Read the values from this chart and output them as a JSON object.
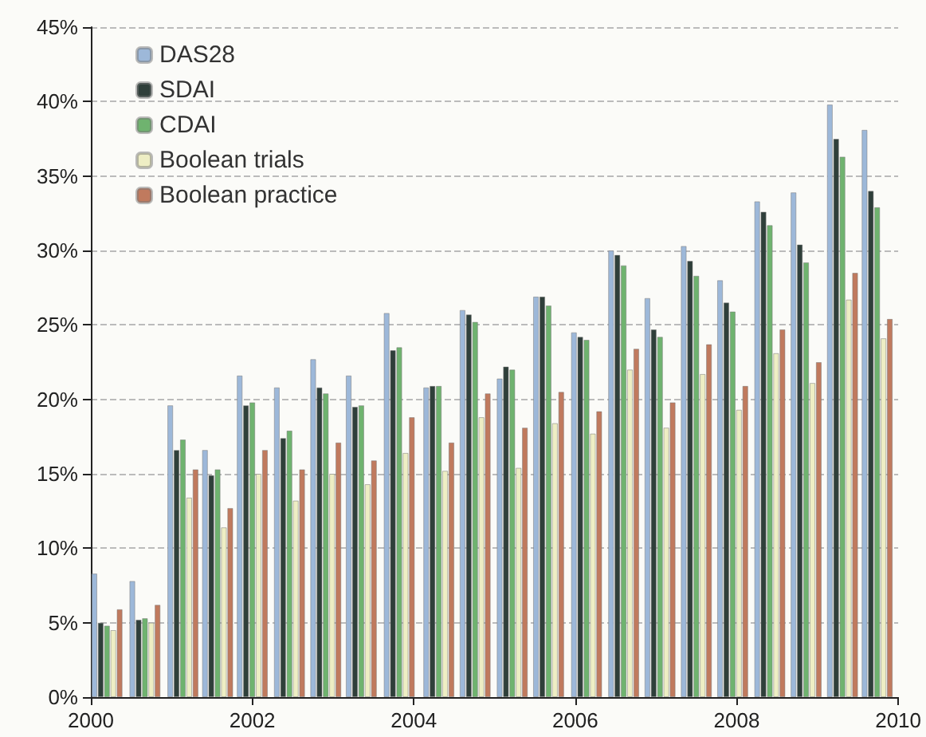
{
  "chart_data": {
    "type": "bar",
    "x": [
      2000.2,
      2000.67,
      2001.14,
      2001.57,
      2002.0,
      2002.46,
      2002.91,
      2003.35,
      2003.82,
      2004.31,
      2004.76,
      2005.22,
      2005.67,
      2006.14,
      2006.6,
      2007.05,
      2007.5,
      2007.95,
      2008.41,
      2008.86,
      2009.31,
      2009.74
    ],
    "series": [
      {
        "name": "DAS28",
        "color": "#9db8d9",
        "values": [
          8.3,
          7.8,
          19.6,
          16.6,
          21.6,
          20.8,
          22.7,
          21.6,
          25.8,
          20.8,
          26.0,
          21.4,
          26.9,
          24.5,
          30.0,
          26.8,
          30.3,
          28.0,
          33.3,
          33.9,
          39.8,
          38.1
        ]
      },
      {
        "name": "SDAI",
        "color": "#2f3f3a",
        "values": [
          5.0,
          5.2,
          16.6,
          14.9,
          19.6,
          17.4,
          20.8,
          19.5,
          23.3,
          20.9,
          25.7,
          22.2,
          26.9,
          24.2,
          29.7,
          24.7,
          29.3,
          26.5,
          32.6,
          30.4,
          37.5,
          34.0
        ]
      },
      {
        "name": "CDAI",
        "color": "#6fb36f",
        "values": [
          4.8,
          5.3,
          17.3,
          15.3,
          19.8,
          17.9,
          20.4,
          19.6,
          23.5,
          20.9,
          25.2,
          22.0,
          26.3,
          24.0,
          29.0,
          24.2,
          28.3,
          25.9,
          31.7,
          29.2,
          36.3,
          32.9
        ]
      },
      {
        "name": "Boolean trials",
        "color": "#eeeec4",
        "values": [
          4.5,
          5.0,
          13.4,
          11.4,
          15.0,
          13.2,
          15.0,
          14.3,
          16.4,
          15.2,
          18.8,
          15.4,
          18.4,
          17.7,
          22.0,
          18.1,
          21.7,
          19.3,
          23.1,
          21.1,
          26.7,
          24.1
        ]
      },
      {
        "name": "Boolean practice",
        "color": "#c07a5e",
        "values": [
          5.9,
          6.2,
          15.3,
          12.7,
          16.6,
          15.3,
          17.1,
          15.9,
          18.8,
          17.1,
          20.4,
          18.1,
          20.5,
          19.2,
          23.4,
          19.8,
          23.7,
          20.9,
          24.7,
          22.5,
          28.5,
          25.4
        ]
      }
    ],
    "xlim": [
      2000,
      2010
    ],
    "xticks": [
      2000,
      2002,
      2004,
      2006,
      2008,
      2010
    ],
    "ylim": [
      0,
      45
    ],
    "yticks": [
      {
        "value": 0,
        "label": "0%"
      },
      {
        "value": 5,
        "label": "5%"
      },
      {
        "value": 10,
        "label": "10%"
      },
      {
        "value": 15,
        "label": "15%"
      },
      {
        "value": 20,
        "label": "20%"
      },
      {
        "value": 25,
        "label": "25%"
      },
      {
        "value": 30,
        "label": "30%"
      },
      {
        "value": 35,
        "label": "35%"
      },
      {
        "value": 40,
        "label": "40%"
      },
      {
        "value": 45,
        "label": "45%"
      }
    ],
    "grid": "y",
    "legend": "top left"
  }
}
